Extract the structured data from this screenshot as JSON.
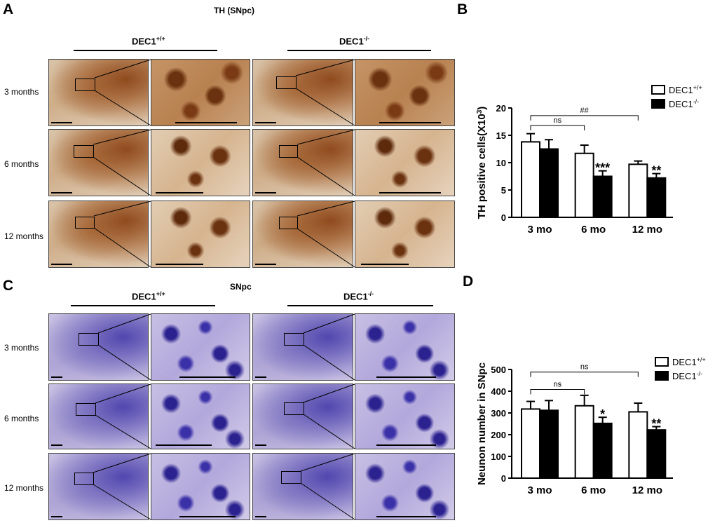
{
  "panels": {
    "A": {
      "label": "A",
      "title": "TH (SNpc)"
    },
    "B": {
      "label": "B"
    },
    "C": {
      "label": "C",
      "title": "SNpc"
    },
    "D": {
      "label": "D"
    }
  },
  "genotypes": {
    "wt_base": "DEC1",
    "wt_sup": "+/+",
    "ko_base": "DEC1",
    "ko_sup": "-/-"
  },
  "rows": [
    "3 months",
    "6 months",
    "12 months"
  ],
  "chart_data": [
    {
      "type": "bar",
      "categories": [
        "3 mo",
        "6 mo",
        "12 mo"
      ],
      "series": [
        {
          "name": "DEC1+/+",
          "values": [
            13.8,
            11.7,
            9.7
          ],
          "errors": [
            1.5,
            1.5,
            0.6
          ],
          "color": "#ffffff"
        },
        {
          "name": "DEC1-/-",
          "values": [
            12.5,
            7.5,
            7.2
          ],
          "errors": [
            1.7,
            1.0,
            0.8
          ],
          "color": "#000000"
        }
      ],
      "ylabel": "TH positive cells(X10",
      "ylabel_sup": "3",
      "ylabel_end": ")",
      "ylim": [
        0,
        20
      ],
      "yticks": [
        0,
        5,
        10,
        15,
        20
      ],
      "annotations": [
        {
          "text": "***",
          "category": 1,
          "series": 1
        },
        {
          "text": "**",
          "category": 2,
          "series": 1
        }
      ],
      "brackets": [
        {
          "text": "ns",
          "from": [
            0,
            0
          ],
          "to": [
            1,
            0
          ],
          "level": 16.8
        },
        {
          "text": "##",
          "from": [
            0,
            0
          ],
          "to": [
            2,
            0
          ],
          "level": 18.6
        }
      ],
      "legend_placement": "top-right"
    },
    {
      "type": "bar",
      "categories": [
        "3 mo",
        "6 mo",
        "12 mo"
      ],
      "series": [
        {
          "name": "DEC1+/+",
          "values": [
            318,
            333,
            305
          ],
          "errors": [
            35,
            48,
            40
          ],
          "color": "#ffffff"
        },
        {
          "name": "DEC1-/-",
          "values": [
            312,
            252,
            222
          ],
          "errors": [
            45,
            28,
            15
          ],
          "color": "#000000"
        }
      ],
      "ylabel": "Neunon number in SNpc",
      "ylim": [
        0,
        500
      ],
      "yticks": [
        0,
        100,
        200,
        300,
        400,
        500
      ],
      "annotations": [
        {
          "text": "*",
          "category": 1,
          "series": 1
        },
        {
          "text": "**",
          "category": 2,
          "series": 1
        }
      ],
      "brackets": [
        {
          "text": "ns",
          "from": [
            0,
            0
          ],
          "to": [
            1,
            0
          ],
          "level": 408
        },
        {
          "text": "ns",
          "from": [
            0,
            0
          ],
          "to": [
            2,
            0
          ],
          "level": 488
        }
      ],
      "legend_placement": "top-right"
    }
  ]
}
